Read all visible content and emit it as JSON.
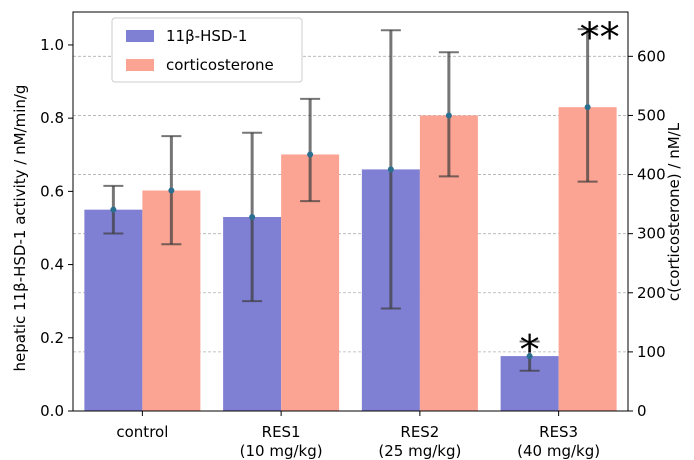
{
  "chart_data": {
    "type": "bar",
    "categories": [
      [
        "control"
      ],
      [
        "RES1",
        "(10 mg/kg)"
      ],
      [
        "RES2",
        "(25 mg/kg)"
      ],
      [
        "RES3",
        "(40 mg/kg)"
      ]
    ],
    "series": [
      {
        "name": "11β-HSD-1",
        "axis": "left",
        "color": "#7f7fd4",
        "values": [
          0.55,
          0.53,
          0.66,
          0.15
        ],
        "err_low": [
          0.485,
          0.3,
          0.28,
          0.11
        ],
        "err_high": [
          0.615,
          0.76,
          1.04,
          0.19
        ]
      },
      {
        "name": "corticosterone",
        "axis": "right",
        "color": "#fba493",
        "values": [
          373,
          434,
          500,
          514
        ],
        "err_low": [
          282,
          355,
          397,
          388
        ],
        "err_high": [
          465,
          528,
          607,
          646
        ]
      }
    ],
    "ylabel": "hepatic 11β-HSD-1 activity / nM/min/g",
    "ylabel_right": "c(corticosterone) / nM/L",
    "ylim": [
      0,
      1.09
    ],
    "ylim_right": [
      0,
      675
    ],
    "yticks": [
      "0.0",
      "0.2",
      "0.4",
      "0.6",
      "0.8",
      "1.0"
    ],
    "yticks_right": [
      "0",
      "100",
      "200",
      "300",
      "400",
      "500",
      "600"
    ],
    "annotations": [
      {
        "text": "*",
        "category": 3,
        "series": 0
      },
      {
        "text": "**",
        "category": 3,
        "series": 1
      }
    ],
    "grid": "right-axis horizontal dashed",
    "legend_position": "top-left"
  }
}
